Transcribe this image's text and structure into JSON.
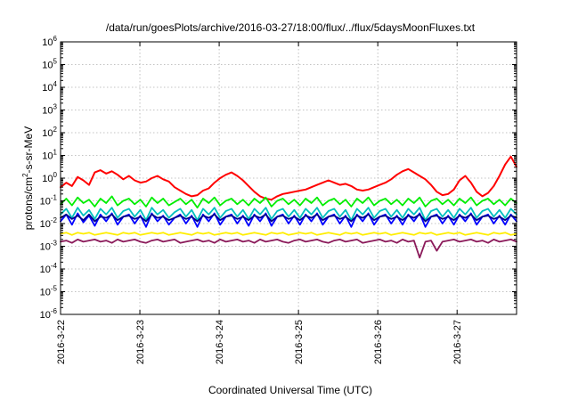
{
  "chart_data": {
    "type": "line",
    "title": "/data/run/goesPlots/archive/2016-03-27/18:00/flux/../flux/5daysMoonFluxes.txt",
    "xlabel": "Coordinated Universal Time (UTC)",
    "ylabel": {
      "base": "protons/cm",
      "sup": "2",
      "rest": "-s-sr-MeV"
    },
    "yscale": "log",
    "ylim_exp": [
      -6,
      6
    ],
    "y_ticks": [
      {
        "base": "10",
        "exp": "-6",
        "value": -6
      },
      {
        "base": "10",
        "exp": "-5",
        "value": -5
      },
      {
        "base": "10",
        "exp": "-4",
        "value": -4
      },
      {
        "base": "10",
        "exp": "-3",
        "value": -3
      },
      {
        "base": "10",
        "exp": "-2",
        "value": -2
      },
      {
        "base": "10",
        "exp": "-1",
        "value": -1
      },
      {
        "base": "10",
        "exp": "0",
        "value": 0
      },
      {
        "base": "10",
        "exp": "1",
        "value": 1
      },
      {
        "base": "10",
        "exp": "2",
        "value": 2
      },
      {
        "base": "10",
        "exp": "3",
        "value": 3
      },
      {
        "base": "10",
        "exp": "4",
        "value": 4
      },
      {
        "base": "10",
        "exp": "5",
        "value": 5
      },
      {
        "base": "10",
        "exp": "6",
        "value": 6
      }
    ],
    "x_ticks": [
      {
        "label": "2016-3-22",
        "day": 0
      },
      {
        "label": "2016-3-23",
        "day": 1
      },
      {
        "label": "2016-3-24",
        "day": 2
      },
      {
        "label": "2016-3-25",
        "day": 3
      },
      {
        "label": "2016-3-26",
        "day": 4
      },
      {
        "label": "2016-3-27",
        "day": 5
      }
    ],
    "xlim_days": [
      0,
      5.75
    ],
    "grid": true,
    "series": [
      {
        "color": "#ff0000",
        "log10_values": [
          -0.4,
          -0.2,
          -0.35,
          0.05,
          -0.1,
          -0.3,
          0.25,
          0.35,
          0.2,
          0.3,
          0.15,
          -0.05,
          0.1,
          -0.1,
          -0.2,
          -0.15,
          0.0,
          0.1,
          -0.05,
          -0.15,
          -0.4,
          -0.55,
          -0.7,
          -0.8,
          -0.75,
          -0.55,
          -0.45,
          -0.2,
          0.0,
          0.15,
          0.25,
          0.1,
          -0.1,
          -0.35,
          -0.6,
          -0.8,
          -0.9,
          -0.95,
          -0.8,
          -0.7,
          -0.65,
          -0.6,
          -0.55,
          -0.5,
          -0.4,
          -0.3,
          -0.2,
          -0.1,
          -0.2,
          -0.3,
          -0.25,
          -0.35,
          -0.5,
          -0.55,
          -0.5,
          -0.4,
          -0.3,
          -0.2,
          -0.05,
          0.15,
          0.3,
          0.4,
          0.25,
          0.1,
          -0.05,
          -0.3,
          -0.6,
          -0.75,
          -0.7,
          -0.5,
          -0.1,
          0.1,
          -0.2,
          -0.6,
          -0.8,
          -0.65,
          -0.35,
          0.1,
          0.6,
          0.95,
          0.5
        ]
      },
      {
        "color": "#00ee00",
        "log10_values": [
          -1.15,
          -0.9,
          -1.2,
          -0.85,
          -1.1,
          -0.95,
          -1.25,
          -0.9,
          -1.1,
          -0.8,
          -1.2,
          -1.0,
          -0.9,
          -1.15,
          -0.95,
          -1.25,
          -0.85,
          -1.1,
          -0.9,
          -1.2,
          -1.05,
          -0.9,
          -1.15,
          -0.95,
          -1.3,
          -0.9,
          -1.1,
          -0.85,
          -1.2,
          -1.0,
          -0.9,
          -1.15,
          -0.95,
          -1.2,
          -0.9,
          -1.1,
          -0.85,
          -1.25,
          -1.0,
          -0.9,
          -1.15,
          -0.95,
          -1.2,
          -0.9,
          -1.1,
          -0.85,
          -1.2,
          -1.0,
          -0.9,
          -1.15,
          -0.95,
          -1.25,
          -0.9,
          -1.1,
          -0.85,
          -1.2,
          -1.0,
          -0.9,
          -1.15,
          -0.95,
          -1.2,
          -0.9,
          -1.1,
          -0.85,
          -1.25,
          -1.0,
          -0.9,
          -1.15,
          -0.95,
          -1.2,
          -0.9,
          -1.1,
          -0.85,
          -1.2,
          -1.0,
          -0.9,
          -1.15,
          -0.95,
          -1.2,
          -0.9,
          -1.1
        ]
      },
      {
        "color": "#00bfbf",
        "log10_values": [
          -1.6,
          -1.35,
          -1.75,
          -1.3,
          -1.65,
          -1.4,
          -1.8,
          -1.35,
          -1.6,
          -1.3,
          -1.75,
          -1.45,
          -1.35,
          -1.7,
          -1.4,
          -1.85,
          -1.3,
          -1.6,
          -1.4,
          -1.75,
          -1.5,
          -1.35,
          -1.7,
          -1.4,
          -1.85,
          -1.35,
          -1.6,
          -1.3,
          -1.75,
          -1.45,
          -1.35,
          -1.7,
          -1.4,
          -1.8,
          -1.35,
          -1.6,
          -1.3,
          -1.8,
          -1.45,
          -1.35,
          -1.7,
          -1.4,
          -1.75,
          -1.35,
          -1.6,
          -1.3,
          -1.75,
          -1.45,
          -1.35,
          -1.7,
          -1.4,
          -1.85,
          -1.35,
          -1.6,
          -1.3,
          -1.75,
          -1.45,
          -1.35,
          -1.7,
          -1.4,
          -1.75,
          -1.35,
          -1.6,
          -1.3,
          -1.85,
          -1.45,
          -1.35,
          -1.7,
          -1.4,
          -1.75,
          -1.35,
          -1.6,
          -1.3,
          -1.75,
          -1.45,
          -1.35,
          -1.7,
          -1.4,
          -1.75,
          -1.35,
          -1.6
        ]
      },
      {
        "color": "#0000ff",
        "log10_values": [
          -1.9,
          -1.6,
          -2.05,
          -1.55,
          -1.95,
          -1.65,
          -2.1,
          -1.6,
          -1.9,
          -1.55,
          -2.05,
          -1.7,
          -1.6,
          -2.0,
          -1.65,
          -2.15,
          -1.55,
          -1.9,
          -1.65,
          -2.05,
          -1.75,
          -1.6,
          -2.0,
          -1.65,
          -2.15,
          -1.6,
          -1.9,
          -1.55,
          -2.05,
          -1.7,
          -1.6,
          -2.0,
          -1.65,
          -2.1,
          -1.6,
          -1.9,
          -1.55,
          -2.1,
          -1.7,
          -1.6,
          -2.0,
          -1.65,
          -2.05,
          -1.6,
          -1.9,
          -1.55,
          -2.05,
          -1.7,
          -1.6,
          -2.0,
          -1.65,
          -2.15,
          -1.6,
          -1.9,
          -1.55,
          -2.05,
          -1.7,
          -1.6,
          -2.0,
          -1.65,
          -2.05,
          -1.6,
          -1.9,
          -1.55,
          -2.15,
          -1.7,
          -1.6,
          -2.0,
          -1.65,
          -2.05,
          -1.6,
          -1.9,
          -1.55,
          -2.05,
          -1.7,
          -1.6,
          -2.0,
          -1.65,
          -2.05,
          -1.6,
          -1.9
        ]
      },
      {
        "color": "#00008b",
        "log10_values": [
          -1.75,
          -1.6,
          -1.8,
          -1.65,
          -1.85,
          -1.6,
          -1.9,
          -1.7,
          -1.75,
          -1.6,
          -1.85,
          -1.7,
          -1.65,
          -1.8,
          -1.7,
          -1.9,
          -1.6,
          -1.75,
          -1.7,
          -1.85,
          -1.75,
          -1.65,
          -1.8,
          -1.7,
          -1.9,
          -1.65,
          -1.75,
          -1.6,
          -1.85,
          -1.7,
          -1.65,
          -1.8,
          -1.7,
          -1.85,
          -1.65,
          -1.75,
          -1.6,
          -1.9,
          -1.7,
          -1.65,
          -1.8,
          -1.7,
          -1.85,
          -1.65,
          -1.75,
          -1.6,
          -1.85,
          -1.7,
          -1.65,
          -1.8,
          -1.7,
          -1.9,
          -1.65,
          -1.75,
          -1.6,
          -1.85,
          -1.7,
          -1.65,
          -1.8,
          -1.7,
          -1.85,
          -1.65,
          -1.75,
          -1.6,
          -1.9,
          -1.7,
          -1.65,
          -1.8,
          -1.7,
          -1.85,
          -1.65,
          -1.75,
          -1.6,
          -1.85,
          -1.7,
          -1.65,
          -1.8,
          -1.7,
          -1.85,
          -1.65,
          -1.75
        ]
      },
      {
        "color": "#ffee00",
        "log10_values": [
          -2.45,
          -2.4,
          -2.5,
          -2.4,
          -2.45,
          -2.4,
          -2.5,
          -2.45,
          -2.4,
          -2.45,
          -2.5,
          -2.4,
          -2.45,
          -2.4,
          -2.5,
          -2.45,
          -2.4,
          -2.45,
          -2.4,
          -2.5,
          -2.45,
          -2.4,
          -2.45,
          -2.5,
          -2.4,
          -2.45,
          -2.4,
          -2.5,
          -2.45,
          -2.4,
          -2.45,
          -2.4,
          -2.5,
          -2.45,
          -2.4,
          -2.45,
          -2.5,
          -2.4,
          -2.45,
          -2.4,
          -2.5,
          -2.45,
          -2.4,
          -2.45,
          -2.4,
          -2.5,
          -2.45,
          -2.4,
          -2.45,
          -2.5,
          -2.4,
          -2.45,
          -2.4,
          -2.5,
          -2.45,
          -2.4,
          -2.45,
          -2.4,
          -2.5,
          -2.45,
          -2.4,
          -2.45,
          -2.5,
          -2.4,
          -2.45,
          -2.4,
          -2.5,
          -2.45,
          -2.4,
          -2.45,
          -2.4,
          -2.5,
          -2.45,
          -2.4,
          -2.45,
          -2.5,
          -2.4,
          -2.45,
          -2.4,
          -2.5,
          -2.45
        ]
      },
      {
        "color": "#8b1a5a",
        "log10_values": [
          -2.8,
          -2.75,
          -2.85,
          -2.7,
          -2.8,
          -2.75,
          -2.7,
          -2.8,
          -2.75,
          -2.85,
          -2.7,
          -2.8,
          -2.75,
          -2.7,
          -2.8,
          -2.85,
          -2.75,
          -2.7,
          -2.8,
          -2.75,
          -2.7,
          -2.85,
          -2.8,
          -2.75,
          -2.7,
          -2.8,
          -2.75,
          -2.85,
          -2.7,
          -2.8,
          -2.75,
          -2.7,
          -2.8,
          -2.75,
          -2.85,
          -2.7,
          -2.8,
          -2.75,
          -2.7,
          -2.8,
          -2.85,
          -2.75,
          -2.7,
          -2.8,
          -2.75,
          -2.7,
          -2.8,
          -2.85,
          -2.75,
          -2.7,
          -2.8,
          -2.75,
          -2.7,
          -2.85,
          -2.8,
          -2.75,
          -2.7,
          -2.8,
          -2.75,
          -2.85,
          -2.7,
          -2.8,
          -2.75,
          -3.5,
          -2.8,
          -2.75,
          -3.2,
          -2.8,
          -2.75,
          -2.7,
          -2.8,
          -2.75,
          -2.7,
          -2.8,
          -2.75,
          -2.85,
          -2.7,
          -2.8,
          -2.75,
          -2.7,
          -2.8
        ]
      }
    ]
  }
}
